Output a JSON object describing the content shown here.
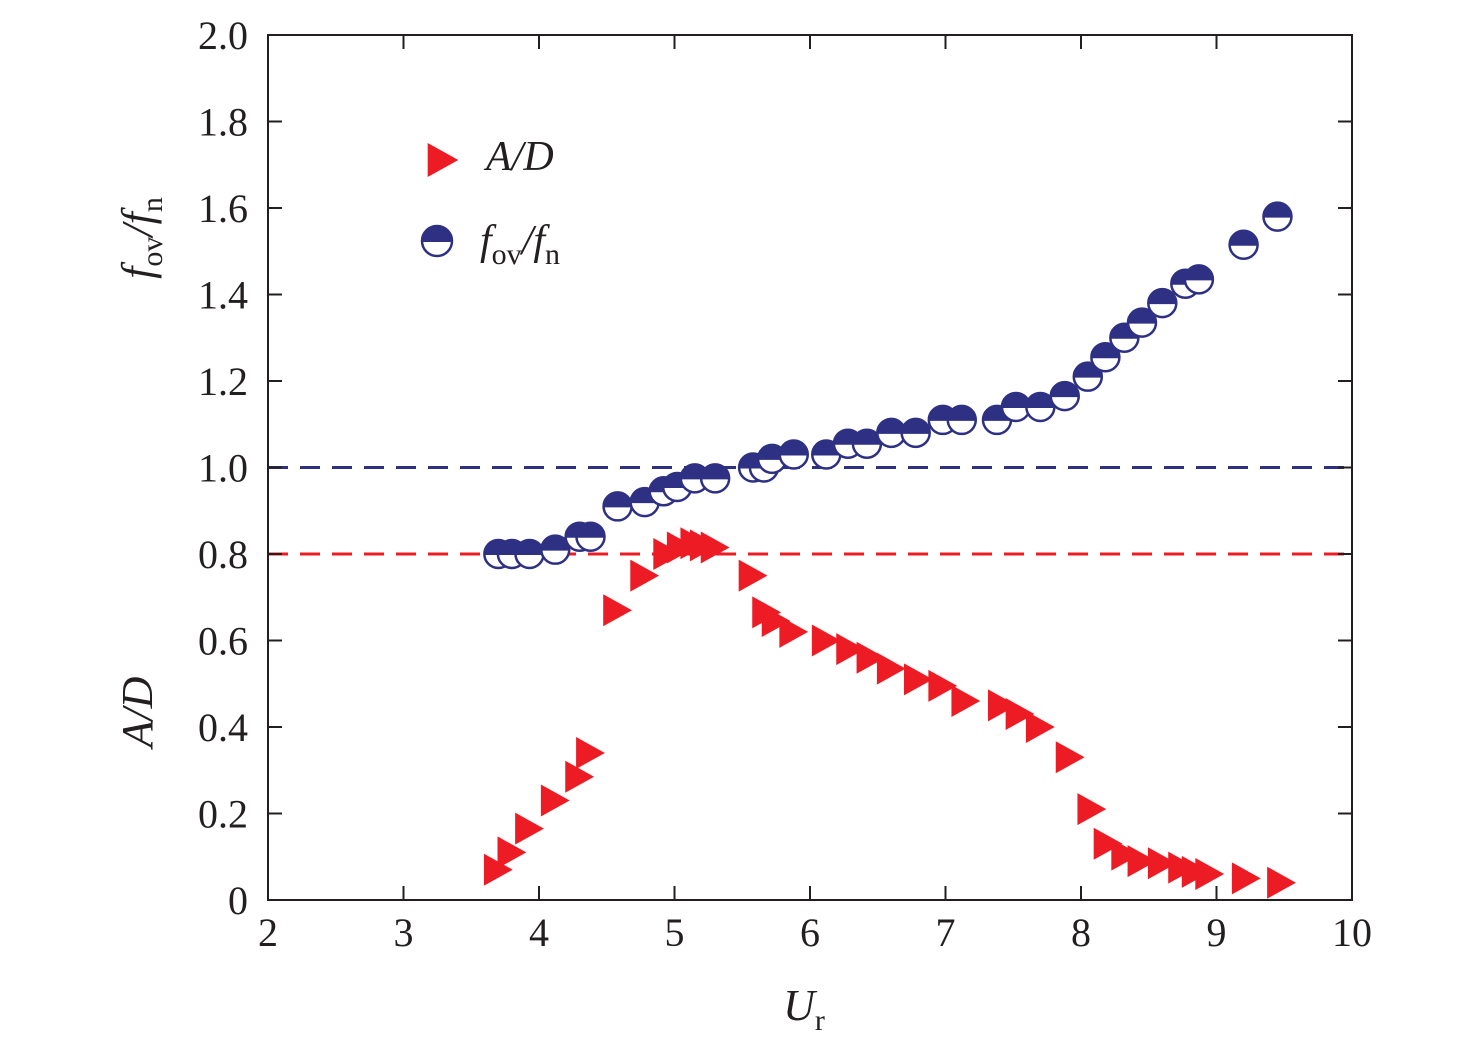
{
  "chart_data": {
    "type": "scatter",
    "title": "",
    "xlabel": {
      "main": "U",
      "sub": "r"
    },
    "ylabel_upper": {
      "main": "f",
      "sub1": "ov",
      "slash": "/",
      "main2": "f",
      "sub2": "n"
    },
    "ylabel_lower": "A/D",
    "xlim": [
      2,
      10
    ],
    "ylim": [
      0,
      2.0
    ],
    "xticks": [
      {
        "v": 2,
        "label": "2"
      },
      {
        "v": 3,
        "label": "3"
      },
      {
        "v": 4,
        "label": "4"
      },
      {
        "v": 5,
        "label": "5"
      },
      {
        "v": 6,
        "label": "6"
      },
      {
        "v": 7,
        "label": "7"
      },
      {
        "v": 8,
        "label": "8"
      },
      {
        "v": 9,
        "label": "9"
      },
      {
        "v": 10,
        "label": "10"
      }
    ],
    "yticks": [
      {
        "v": 0,
        "label": "0"
      },
      {
        "v": 0.2,
        "label": "0.2"
      },
      {
        "v": 0.4,
        "label": "0.4"
      },
      {
        "v": 0.6,
        "label": "0.6"
      },
      {
        "v": 0.8,
        "label": "0.8"
      },
      {
        "v": 1.0,
        "label": "1.0"
      },
      {
        "v": 1.2,
        "label": "1.2"
      },
      {
        "v": 1.4,
        "label": "1.4"
      },
      {
        "v": 1.6,
        "label": "1.6"
      },
      {
        "v": 1.8,
        "label": "1.8"
      },
      {
        "v": 2.0,
        "label": "2.0"
      }
    ],
    "reference_lines": [
      {
        "y": 1.0,
        "color": "#2e3183",
        "style": "dashed"
      },
      {
        "y": 0.8,
        "color": "#ed1c24",
        "style": "dashed"
      }
    ],
    "legend": {
      "position": "top-left",
      "entries": [
        {
          "series": "A/D",
          "text_main": "A/D",
          "marker": "triangle-right"
        },
        {
          "series": "f_ov/f_n",
          "text_f1": "f",
          "text_sub1": "ov",
          "text_slash": "/",
          "text_f2": "f",
          "text_sub2": "n",
          "marker": "half-filled-circle"
        }
      ]
    },
    "series": [
      {
        "name": "A/D",
        "marker": "triangle-right",
        "color": "#ed1c24",
        "points": [
          [
            3.7,
            0.07
          ],
          [
            3.8,
            0.11
          ],
          [
            3.93,
            0.165
          ],
          [
            4.12,
            0.23
          ],
          [
            4.3,
            0.285
          ],
          [
            4.38,
            0.34
          ],
          [
            4.58,
            0.67
          ],
          [
            4.78,
            0.75
          ],
          [
            4.95,
            0.8
          ],
          [
            5.05,
            0.815
          ],
          [
            5.15,
            0.825
          ],
          [
            5.22,
            0.82
          ],
          [
            5.3,
            0.815
          ],
          [
            5.58,
            0.75
          ],
          [
            5.68,
            0.665
          ],
          [
            5.75,
            0.645
          ],
          [
            5.88,
            0.62
          ],
          [
            6.12,
            0.6
          ],
          [
            6.3,
            0.58
          ],
          [
            6.45,
            0.56
          ],
          [
            6.6,
            0.535
          ],
          [
            6.8,
            0.51
          ],
          [
            6.98,
            0.495
          ],
          [
            7.15,
            0.46
          ],
          [
            7.42,
            0.45
          ],
          [
            7.55,
            0.43
          ],
          [
            7.7,
            0.4
          ],
          [
            7.92,
            0.33
          ],
          [
            8.08,
            0.21
          ],
          [
            8.2,
            0.13
          ],
          [
            8.33,
            0.105
          ],
          [
            8.45,
            0.09
          ],
          [
            8.6,
            0.085
          ],
          [
            8.75,
            0.075
          ],
          [
            8.85,
            0.065
          ],
          [
            8.95,
            0.06
          ],
          [
            9.22,
            0.05
          ],
          [
            9.48,
            0.04
          ]
        ]
      },
      {
        "name": "f_ov/f_n",
        "marker": "half-filled-circle",
        "color": "#2e3183",
        "points": [
          [
            3.7,
            0.8
          ],
          [
            3.8,
            0.8
          ],
          [
            3.93,
            0.8
          ],
          [
            4.12,
            0.81
          ],
          [
            4.3,
            0.84
          ],
          [
            4.38,
            0.84
          ],
          [
            4.58,
            0.91
          ],
          [
            4.78,
            0.92
          ],
          [
            4.92,
            0.945
          ],
          [
            5.02,
            0.955
          ],
          [
            5.15,
            0.975
          ],
          [
            5.3,
            0.975
          ],
          [
            5.58,
            1.0
          ],
          [
            5.66,
            1.0
          ],
          [
            5.72,
            1.02
          ],
          [
            5.88,
            1.03
          ],
          [
            6.12,
            1.03
          ],
          [
            6.28,
            1.055
          ],
          [
            6.42,
            1.055
          ],
          [
            6.6,
            1.08
          ],
          [
            6.78,
            1.08
          ],
          [
            6.98,
            1.11
          ],
          [
            7.12,
            1.11
          ],
          [
            7.38,
            1.11
          ],
          [
            7.52,
            1.14
          ],
          [
            7.7,
            1.14
          ],
          [
            7.88,
            1.165
          ],
          [
            8.05,
            1.21
          ],
          [
            8.18,
            1.255
          ],
          [
            8.32,
            1.3
          ],
          [
            8.45,
            1.335
          ],
          [
            8.6,
            1.38
          ],
          [
            8.77,
            1.425
          ],
          [
            8.87,
            1.435
          ],
          [
            9.2,
            1.515
          ],
          [
            9.45,
            1.58
          ]
        ]
      }
    ]
  }
}
